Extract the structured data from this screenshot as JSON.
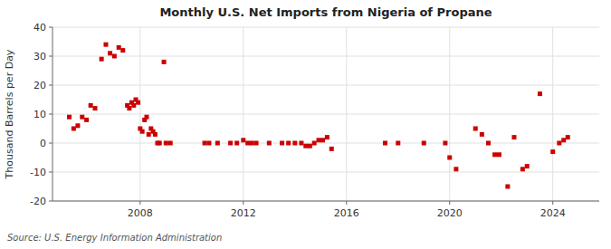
{
  "chart_data": {
    "type": "scatter",
    "title": "Monthly U.S. Net Imports from Nigeria of Propane",
    "ylabel": "Thousand Barrels per Day",
    "source": "Source: U.S. Energy Information Administration",
    "color": "#cc0000",
    "marker": "square",
    "grid": true,
    "xlim": [
      2004.6,
      2025.8
    ],
    "xticks": [
      2008,
      2012,
      2016,
      2020,
      2024
    ],
    "ylim": [
      -20,
      40
    ],
    "yticks": [
      -20,
      -10,
      0,
      10,
      20,
      30,
      40
    ],
    "x": [
      2005.25,
      2005.42,
      2005.58,
      2005.75,
      2005.92,
      2006.08,
      2006.25,
      2006.5,
      2006.67,
      2006.83,
      2007.0,
      2007.17,
      2007.33,
      2007.5,
      2007.58,
      2007.67,
      2007.75,
      2007.83,
      2007.92,
      2008.0,
      2008.08,
      2008.17,
      2008.25,
      2008.33,
      2008.42,
      2008.5,
      2008.58,
      2008.67,
      2008.75,
      2008.92,
      2009.0,
      2009.17,
      2010.5,
      2010.67,
      2011.0,
      2011.5,
      2011.75,
      2012.0,
      2012.17,
      2012.33,
      2012.5,
      2013.0,
      2013.5,
      2013.75,
      2014.0,
      2014.25,
      2014.42,
      2014.58,
      2014.75,
      2014.92,
      2015.08,
      2015.25,
      2015.42,
      2017.5,
      2018.0,
      2019.0,
      2019.83,
      2020.0,
      2020.25,
      2021.0,
      2021.25,
      2021.5,
      2021.75,
      2021.92,
      2022.25,
      2022.5,
      2022.83,
      2023.0,
      2023.5,
      2024.0,
      2024.25,
      2024.42,
      2024.58
    ],
    "values": [
      9,
      5,
      6,
      9,
      8,
      13,
      12,
      29,
      34,
      31,
      30,
      33,
      32,
      13,
      12,
      14,
      13,
      15,
      14,
      5,
      4,
      8,
      9,
      3,
      5,
      4,
      3,
      0,
      0,
      28,
      0,
      0,
      0,
      0,
      0,
      0,
      0,
      1,
      0,
      0,
      0,
      0,
      0,
      0,
      0,
      0,
      -1,
      -1,
      0,
      1,
      1,
      2,
      -2,
      0,
      0,
      0,
      0,
      -5,
      -9,
      5,
      3,
      0,
      -4,
      -4,
      -15,
      2,
      -9,
      -8,
      17,
      -3,
      0,
      1,
      2
    ]
  }
}
